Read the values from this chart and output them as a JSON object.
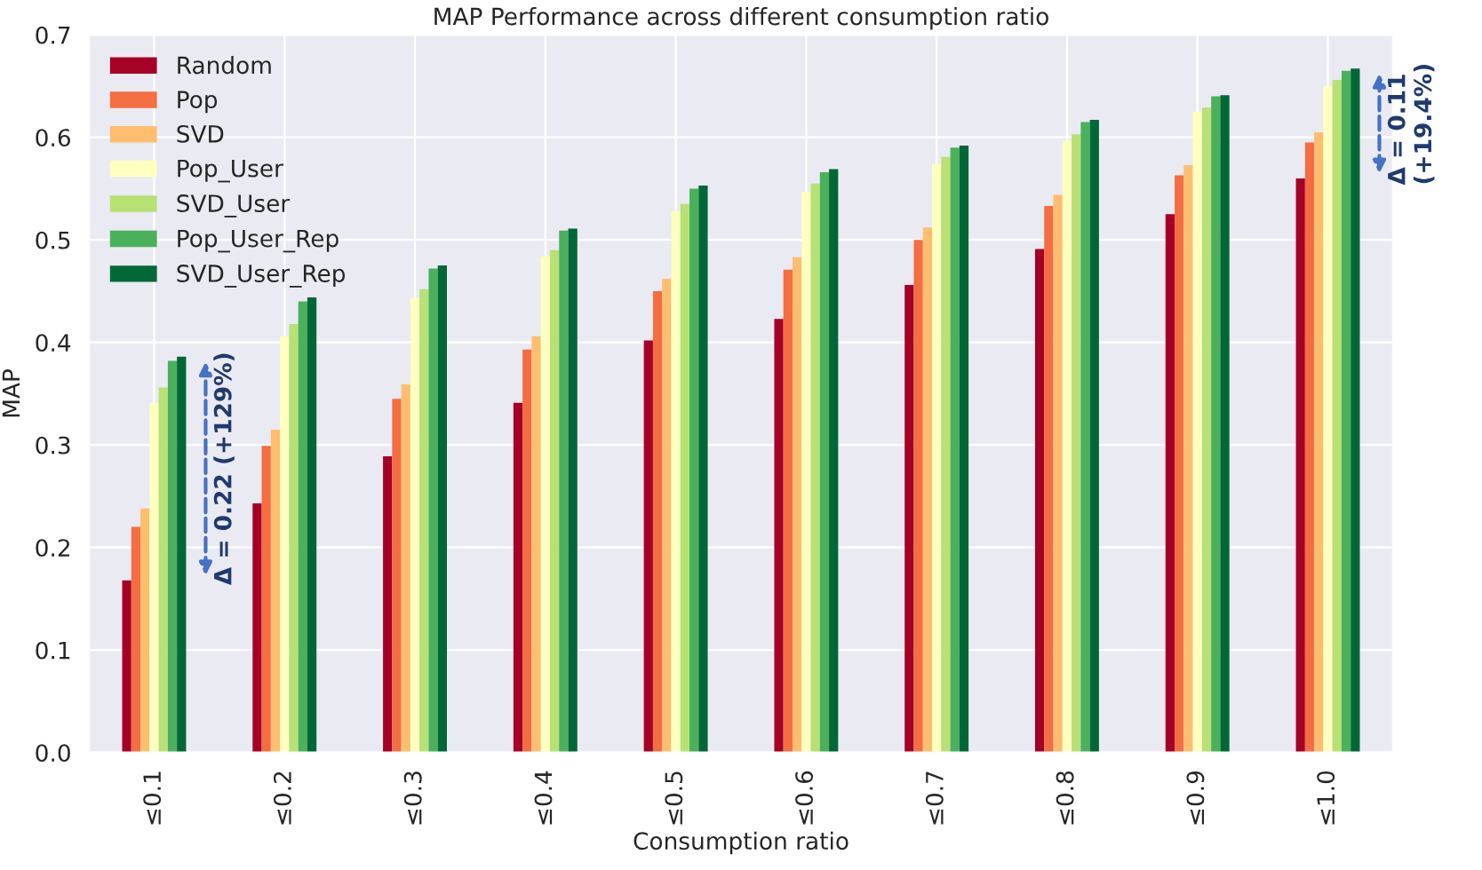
{
  "chart_data": {
    "type": "bar",
    "title": "MAP Performance across different consumption ratio",
    "xlabel": "Consumption ratio",
    "ylabel": "MAP",
    "categories": [
      "≤0.1",
      "≤0.2",
      "≤0.3",
      "≤0.4",
      "≤0.5",
      "≤0.6",
      "≤0.7",
      "≤0.8",
      "≤0.9",
      "≤1.0"
    ],
    "series": [
      {
        "name": "Random",
        "color": "#a50026",
        "values": [
          0.168,
          0.243,
          0.289,
          0.341,
          0.402,
          0.423,
          0.456,
          0.491,
          0.525,
          0.56
        ]
      },
      {
        "name": "Pop",
        "color": "#f46d43",
        "values": [
          0.22,
          0.299,
          0.345,
          0.393,
          0.45,
          0.471,
          0.5,
          0.533,
          0.563,
          0.595
        ]
      },
      {
        "name": "SVD",
        "color": "#fdbe6f",
        "values": [
          0.238,
          0.315,
          0.359,
          0.406,
          0.462,
          0.483,
          0.512,
          0.544,
          0.573,
          0.605
        ]
      },
      {
        "name": "Pop_User",
        "color": "#ffffbf",
        "values": [
          0.341,
          0.406,
          0.443,
          0.484,
          0.528,
          0.547,
          0.574,
          0.597,
          0.625,
          0.65
        ]
      },
      {
        "name": "SVD_User",
        "color": "#b7e075",
        "values": [
          0.356,
          0.418,
          0.452,
          0.49,
          0.535,
          0.555,
          0.581,
          0.603,
          0.629,
          0.656
        ]
      },
      {
        "name": "Pop_User_Rep",
        "color": "#4bb05c",
        "values": [
          0.382,
          0.44,
          0.472,
          0.509,
          0.55,
          0.566,
          0.59,
          0.615,
          0.64,
          0.665
        ]
      },
      {
        "name": "SVD_User_Rep",
        "color": "#006837",
        "values": [
          0.386,
          0.444,
          0.475,
          0.511,
          0.553,
          0.569,
          0.592,
          0.617,
          0.641,
          0.667
        ]
      }
    ],
    "ylim": [
      0,
      0.7
    ],
    "yticks": [
      {
        "value": 0,
        "label": "0.0"
      },
      0.1,
      0.2,
      0.3,
      0.4,
      0.5,
      0.6,
      0.7
    ],
    "annotations": [
      {
        "text": "Δ = 0.22 (+129%)",
        "x": "≤0.1",
        "y": 0.277
      },
      {
        "text": "Δ = 0.11\n(+19.4%)",
        "x": "≤1.0",
        "y": 0.613
      }
    ],
    "grid": true,
    "legend": "top left"
  }
}
